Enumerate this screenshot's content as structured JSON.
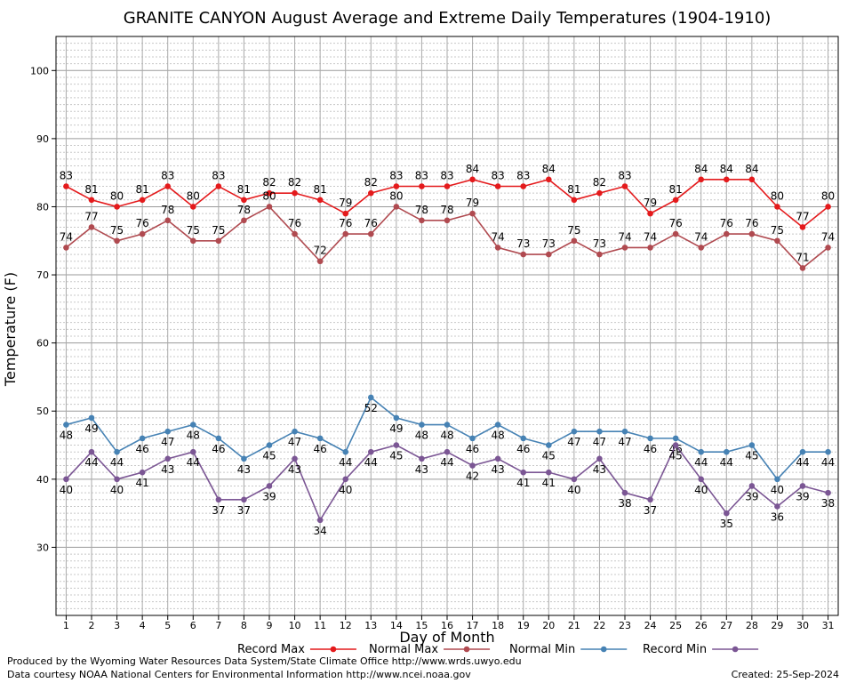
{
  "chart_data": {
    "type": "line",
    "title": "GRANITE CANYON August Average and Extreme Daily Temperatures (1904-1910)",
    "xlabel": "Day of Month",
    "ylabel": "Temperature (F)",
    "ylim": [
      20,
      105
    ],
    "xlim": [
      0.6,
      31.4
    ],
    "y_ticks": [
      30,
      40,
      50,
      60,
      70,
      80,
      90,
      100
    ],
    "x": [
      1,
      2,
      3,
      4,
      5,
      6,
      7,
      8,
      9,
      10,
      11,
      12,
      13,
      14,
      15,
      16,
      17,
      18,
      19,
      20,
      21,
      22,
      23,
      24,
      25,
      26,
      27,
      28,
      29,
      30,
      31
    ],
    "grid": true,
    "legend_position": "bottom",
    "series": [
      {
        "name": "Record Max",
        "color": "#e41a1c",
        "label_position": "above",
        "values": [
          83,
          81,
          80,
          81,
          83,
          80,
          83,
          81,
          82,
          82,
          81,
          79,
          82,
          83,
          83,
          83,
          84,
          83,
          83,
          84,
          81,
          82,
          83,
          79,
          81,
          84,
          84,
          84,
          80,
          77,
          80
        ]
      },
      {
        "name": "Normal Max",
        "color": "#b04a50",
        "label_position": "above",
        "values": [
          74,
          77,
          75,
          76,
          78,
          75,
          75,
          78,
          80,
          76,
          72,
          76,
          76,
          80,
          78,
          78,
          79,
          74,
          73,
          73,
          75,
          73,
          74,
          74,
          76,
          74,
          76,
          76,
          75,
          71,
          74
        ]
      },
      {
        "name": "Normal Min",
        "color": "#4682b4",
        "label_position": "below",
        "values": [
          48,
          49,
          44,
          46,
          47,
          48,
          46,
          43,
          45,
          47,
          46,
          44,
          52,
          49,
          48,
          48,
          46,
          48,
          46,
          45,
          47,
          47,
          47,
          46,
          46,
          44,
          44,
          45,
          40,
          44,
          44
        ]
      },
      {
        "name": "Record Min",
        "color": "#7b5694",
        "label_position": "below",
        "values": [
          40,
          44,
          40,
          41,
          43,
          44,
          37,
          37,
          39,
          43,
          34,
          40,
          44,
          45,
          43,
          44,
          42,
          43,
          41,
          41,
          40,
          43,
          38,
          37,
          45,
          40,
          35,
          39,
          36,
          39,
          38
        ]
      }
    ]
  },
  "footer": {
    "produced_by": "Produced by the Wyoming Water Resources Data System/State Climate Office http://www.wrds.uwyo.edu",
    "data_courtesy": "Data courtesy NOAA National Centers for Environmental Information http://www.ncei.noaa.gov",
    "created": "Created:  25-Sep-2024"
  }
}
